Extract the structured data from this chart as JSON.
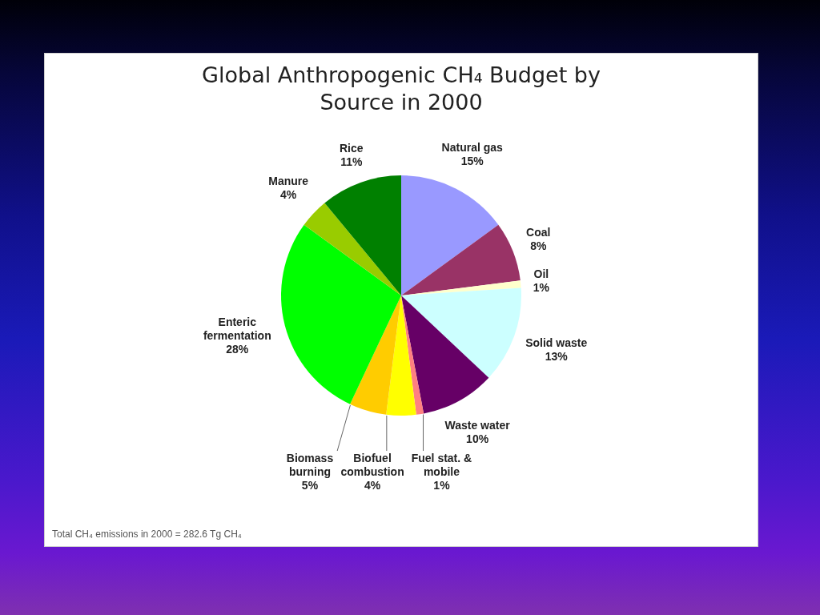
{
  "chart_data": {
    "type": "pie",
    "title": "Global Anthropogenic CH₄ Budget by Source in 2000",
    "categories": [
      "Natural gas",
      "Coal",
      "Oil",
      "Solid waste",
      "Waste water",
      "Fuel stat. & mobile",
      "Biofuel combustion",
      "Biomass burning",
      "Enteric fermentation",
      "Manure",
      "Rice"
    ],
    "values": [
      15,
      8,
      1,
      13,
      10,
      1,
      4,
      5,
      28,
      4,
      11
    ],
    "value_labels": [
      "15%",
      "8%",
      "1%",
      "13%",
      "10%",
      "1%",
      "4%",
      "5%",
      "28%",
      "4%",
      "11%"
    ],
    "colors": [
      "#9999ff",
      "#993366",
      "#ffffcc",
      "#ccffff",
      "#660066",
      "#ff8080",
      "#ffff00",
      "#ffcc00",
      "#00ff00",
      "#99cc00",
      "#008000"
    ],
    "annotations": [
      "Total CH₄ emissions in 2000 = 282.6 Tg CH₄"
    ]
  }
}
